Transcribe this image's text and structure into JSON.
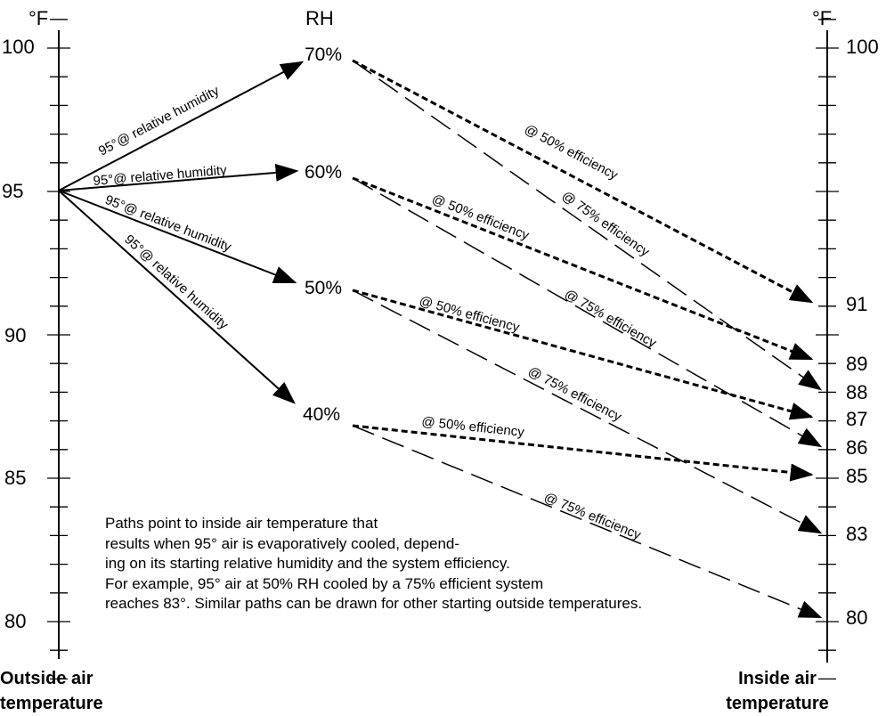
{
  "header": {
    "left_unit": "°F",
    "center_label": "RH",
    "right_unit": "°F"
  },
  "left_scale": {
    "min": 78,
    "max": 101,
    "labels": [
      "100",
      "95",
      "90",
      "85",
      "80"
    ]
  },
  "right_scale": {
    "labels": [
      "100",
      "91",
      "89",
      "88",
      "87",
      "86",
      "85",
      "83",
      "80"
    ]
  },
  "humidity_points": [
    "70%",
    "60%",
    "50%",
    "40%"
  ],
  "start_label": "95°@ relative humidity",
  "efficiency_labels": {
    "fifty": "@ 50% efficiency",
    "seventyfive": "@ 75% efficiency"
  },
  "paths": [
    {
      "rh": "70%",
      "eff50_result": "91",
      "eff75_result": "88"
    },
    {
      "rh": "60%",
      "eff50_result": "89",
      "eff75_result": "86"
    },
    {
      "rh": "50%",
      "eff50_result": "87",
      "eff75_result": "83"
    },
    {
      "rh": "40%",
      "eff50_result": "85",
      "eff75_result": "80"
    }
  ],
  "note": {
    "lines": [
      "Paths point to inside air temperature that",
      "results when 95° air is evaporatively cooled, depend-",
      "ing on its starting relative humidity and the system efficiency.",
      "For example, 95° air at 50% RH cooled by a 75% efficient system",
      "reaches 83°. Similar paths can be drawn for other starting outside temperatures."
    ]
  },
  "footer": {
    "left": [
      "Outside air",
      "temperature"
    ],
    "right": [
      "Inside air",
      "temperature"
    ]
  }
}
